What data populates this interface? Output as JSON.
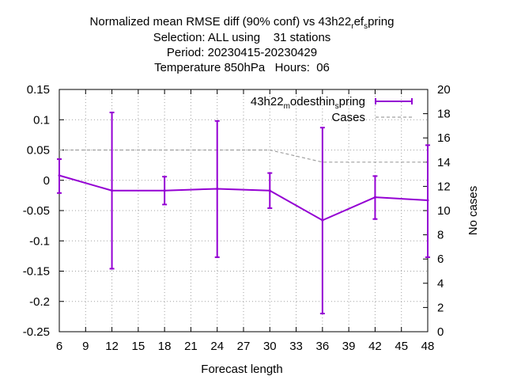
{
  "chart_data": {
    "type": "line",
    "title_lines": [
      "Normalized mean RMSE diff (90% conf) vs 43h22",
      "Selection: ALL using    31 stations",
      "Period: 20230415-20230429",
      "Temperature 850hPa   Hours:  06"
    ],
    "title_suffix": {
      "a": "r",
      "b": "ef",
      "c": "s",
      "d": "pring"
    },
    "xlabel": "Forecast length",
    "ylabel": "",
    "y2label": "No cases",
    "xlim": [
      6,
      48
    ],
    "ylim": [
      -0.25,
      0.15
    ],
    "y2lim": [
      0,
      20
    ],
    "xticks": [
      "6",
      "9",
      "12",
      "15",
      "18",
      "21",
      "24",
      "27",
      "30",
      "33",
      "36",
      "39",
      "42",
      "45",
      "48"
    ],
    "yticks": [
      "0.15",
      "0.1",
      "0.05",
      "0",
      "-0.05",
      "-0.1",
      "-0.15",
      "-0.2",
      "-0.25"
    ],
    "y2ticks": [
      "20",
      "18",
      "16",
      "14",
      "12",
      "10",
      "8",
      "6",
      "4",
      "2",
      "0"
    ],
    "grid": true,
    "legend_position": "top-right",
    "series": [
      {
        "legend_parts": {
          "a": "43h22",
          "b": "m",
          "c": "odesthin",
          "d": "s",
          "e": "pring"
        },
        "color": "#9400d3",
        "style": "line-errorbars",
        "x": [
          6,
          12,
          18,
          24,
          30,
          36,
          42,
          48
        ],
        "y": [
          0.008,
          -0.017,
          -0.017,
          -0.014,
          -0.017,
          -0.066,
          -0.028,
          -0.033
        ],
        "err_low": [
          -0.021,
          -0.146,
          -0.04,
          -0.127,
          -0.046,
          -0.22,
          -0.064,
          -0.127
        ],
        "err_high": [
          0.035,
          0.112,
          0.006,
          0.098,
          0.012,
          0.087,
          0.007,
          0.058
        ]
      },
      {
        "name": "Cases",
        "color": "#a0a0a0",
        "style": "dashed",
        "axis": "y2",
        "x": [
          6,
          12,
          18,
          24,
          30,
          36,
          42,
          48
        ],
        "y": [
          15,
          15,
          15,
          15,
          15,
          14,
          14,
          14
        ]
      }
    ]
  }
}
